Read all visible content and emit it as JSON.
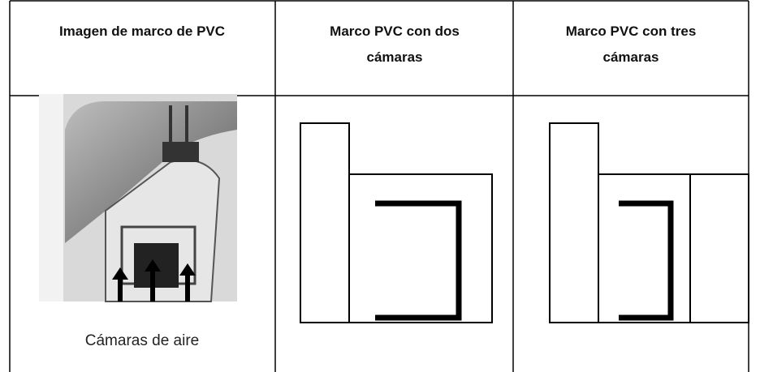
{
  "table": {
    "headers": [
      [
        "Imagen de marco de PVC"
      ],
      [
        "Marco PVC con dos",
        "cámaras"
      ],
      [
        "Marco PVC con tres",
        "cámaras"
      ]
    ],
    "caption": "Cámaras de aire"
  }
}
